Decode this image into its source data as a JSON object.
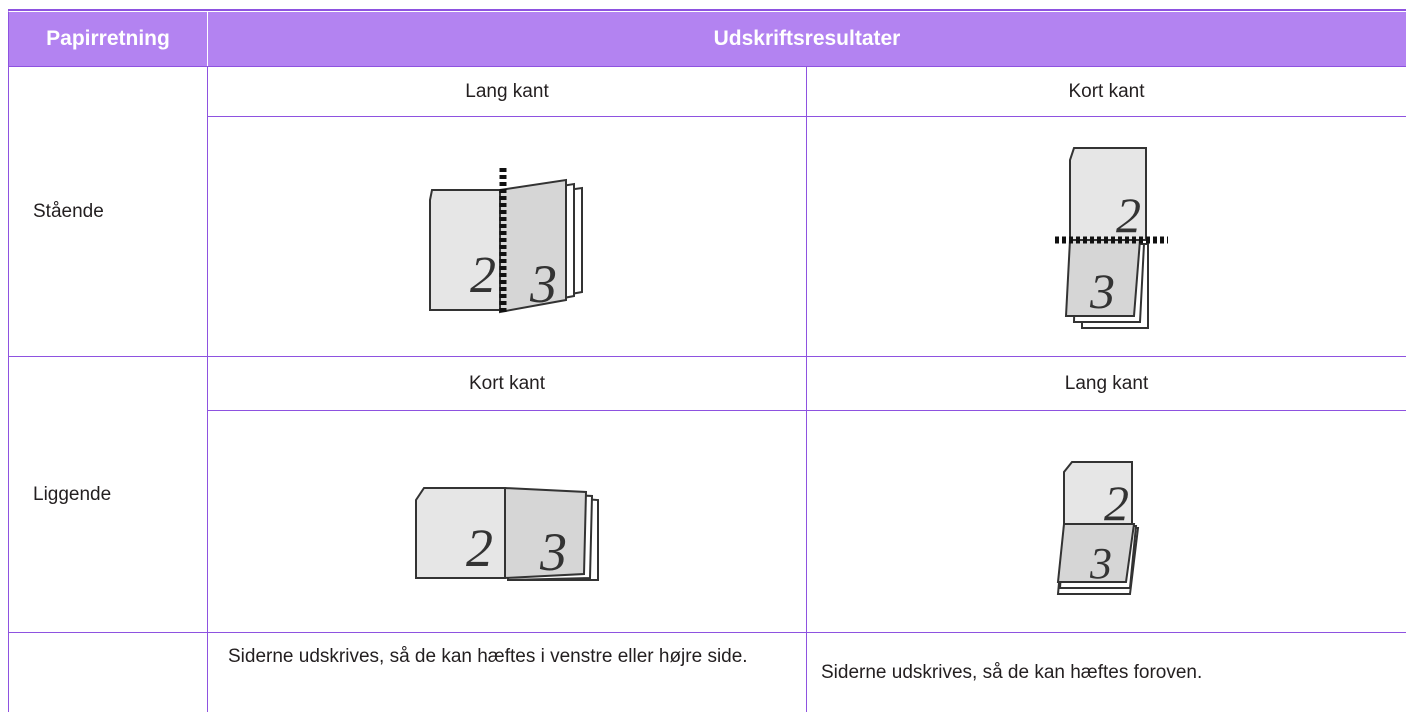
{
  "table": {
    "header": [
      "Papirretning",
      "Udskriftsresultater"
    ],
    "rows": [
      {
        "orientation": "Stående",
        "left": {
          "label": "Lang kant",
          "pages": [
            "2",
            "3"
          ]
        },
        "right": {
          "label": "Kort kant",
          "pages": [
            "2",
            "3"
          ]
        }
      },
      {
        "orientation": "Liggende",
        "left": {
          "label": "Kort kant",
          "pages": [
            "2",
            "3"
          ]
        },
        "right": {
          "label": "Lang kant",
          "pages": [
            "2",
            "3"
          ]
        }
      }
    ],
    "notes": [
      "Siderne udskrives, så de kan hæftes i venstre eller højre side.",
      "Siderne udskrives, så de kan hæftes foroven."
    ]
  }
}
